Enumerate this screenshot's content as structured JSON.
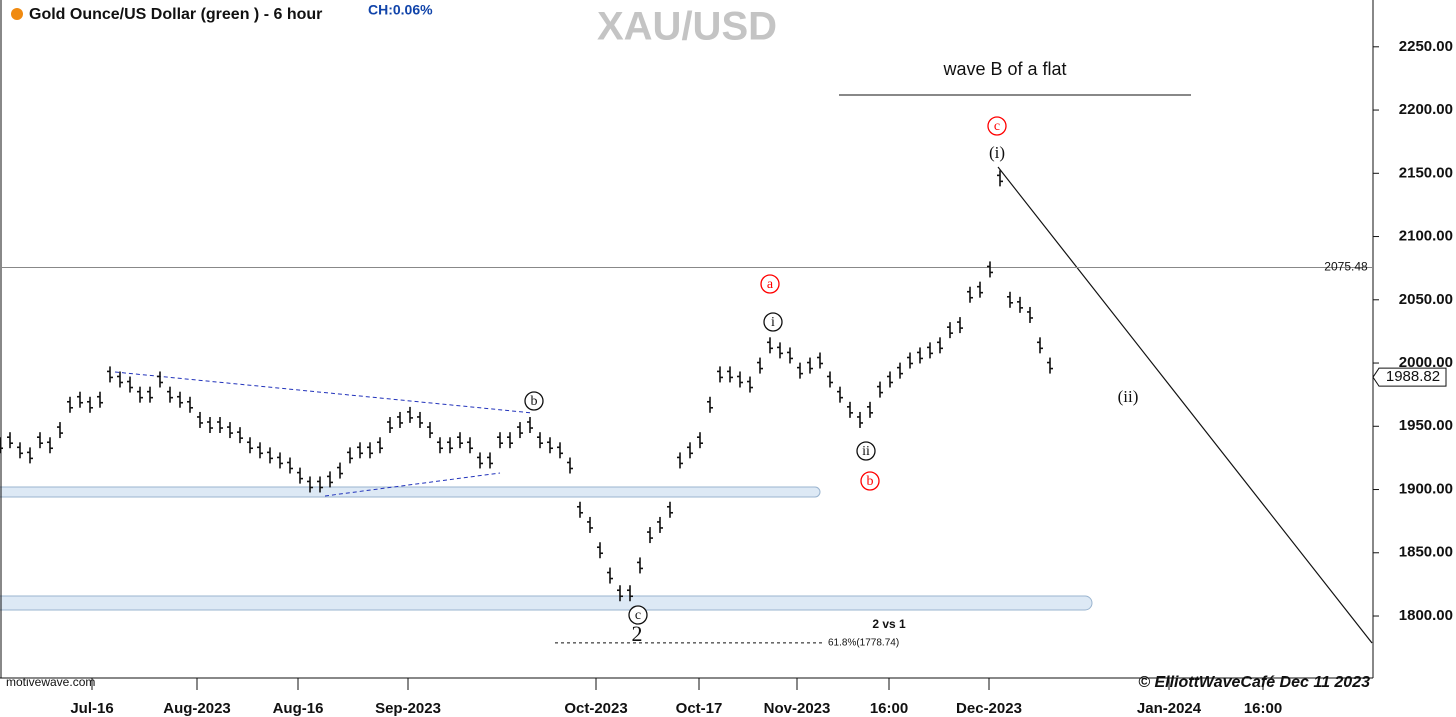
{
  "chart_data": {
    "type": "price-bars",
    "title": "Gold Ounce/US Dollar (green ) - 6 hour",
    "change": "CH:0.06%",
    "symbol": "XAU/USD",
    "heading": "wave B of a flat",
    "color": "#111111",
    "values": [
      1935,
      1939,
      1931,
      1927,
      1939,
      1935,
      1947,
      1967,
      1971,
      1967,
      1971,
      1991,
      1987,
      1983,
      1975,
      1975,
      1987,
      1975,
      1971,
      1967,
      1955,
      1951,
      1951,
      1947,
      1943,
      1935,
      1931,
      1927,
      1923,
      1919,
      1911,
      1904,
      1904,
      1908,
      1915,
      1927,
      1931,
      1931,
      1935,
      1951,
      1955,
      1959,
      1955,
      1947,
      1935,
      1935,
      1939,
      1935,
      1923,
      1923,
      1939,
      1939,
      1947,
      1951,
      1939,
      1935,
      1931,
      1919,
      1884,
      1872,
      1852,
      1832,
      1818,
      1818,
      1840,
      1864,
      1872,
      1884,
      1923,
      1931,
      1939,
      1967,
      1991,
      1991,
      1987,
      1983,
      1998,
      2014,
      2010,
      2006,
      1994,
      1998,
      2002,
      1987,
      1975,
      1963,
      1955,
      1963,
      1979,
      1987,
      1994,
      2002,
      2006,
      2010,
      2014,
      2026,
      2030,
      2054,
      2058,
      2074,
      2146,
      2050,
      2046,
      2038,
      2014,
      1998
    ],
    "xlim": [
      0,
      137
    ],
    "xticks": [
      {
        "value": 9.2,
        "label": "Jul-16"
      },
      {
        "value": 19.7,
        "label": "Aug-2023"
      },
      {
        "value": 29.8,
        "label": "Aug-16"
      },
      {
        "value": 40.8,
        "label": "Sep-2023"
      },
      {
        "value": 59.6,
        "label": "Oct-2023"
      },
      {
        "value": 69.9,
        "label": "Oct-17"
      },
      {
        "value": 79.7,
        "label": "Nov-2023"
      },
      {
        "value": 88.9,
        "label": "16:00"
      },
      {
        "value": 98.9,
        "label": "Dec-2023"
      },
      {
        "value": 116.9,
        "label": "Jan-2024"
      },
      {
        "value": 126.3,
        "label": "16:00"
      }
    ],
    "ylim": [
      1751,
      2287
    ],
    "yticks": [
      {
        "value": 1800,
        "label": "1800.00"
      },
      {
        "value": 1850,
        "label": "1850.00"
      },
      {
        "value": 1900,
        "label": "1900.00"
      },
      {
        "value": 1950,
        "label": "1950.00"
      },
      {
        "value": 2000,
        "label": "2000.00"
      },
      {
        "value": 2050,
        "label": "2050.00"
      },
      {
        "value": 2100,
        "label": "2100.00"
      },
      {
        "value": 2150,
        "label": "2150.00"
      },
      {
        "value": 2200,
        "label": "2200.00"
      },
      {
        "value": 2250,
        "label": "2250.00"
      }
    ],
    "reference_line": 2075.48,
    "last_price": 1988.82,
    "fib_level": {
      "value": 1778.74,
      "label": "61.8%(1778.74)"
    },
    "wave_labels": [
      "c",
      "(i)",
      "a",
      "i",
      "ii",
      "b",
      "(ii)",
      "b",
      "c",
      "2"
    ],
    "note": "2 vs 1",
    "source": "motivewave.com",
    "credit": "© ElliottWaveCafé  Dec 11  2023"
  }
}
